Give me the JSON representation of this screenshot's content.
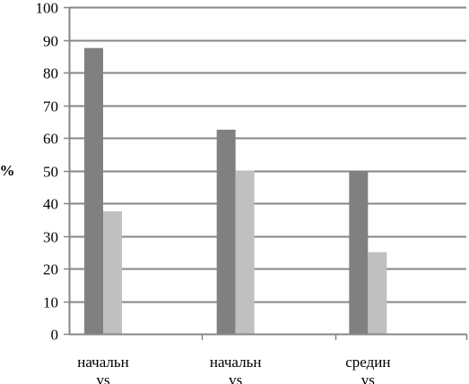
{
  "chart_data": {
    "type": "bar",
    "categories": [
      [
        "начальн",
        "vs"
      ],
      [
        "начальн",
        "vs"
      ],
      [
        "средин",
        "vs"
      ]
    ],
    "series": [
      {
        "values": [
          87.5,
          62.5,
          50
        ],
        "color": "#808080"
      },
      {
        "values": [
          37.5,
          50,
          25
        ],
        "color": "#c0c0c0"
      }
    ],
    "ylabel": "%",
    "ylim": [
      0,
      100
    ],
    "yticks": [
      0,
      10,
      20,
      30,
      40,
      50,
      60,
      70,
      80,
      90,
      100
    ],
    "grid": true,
    "legend": "none"
  }
}
